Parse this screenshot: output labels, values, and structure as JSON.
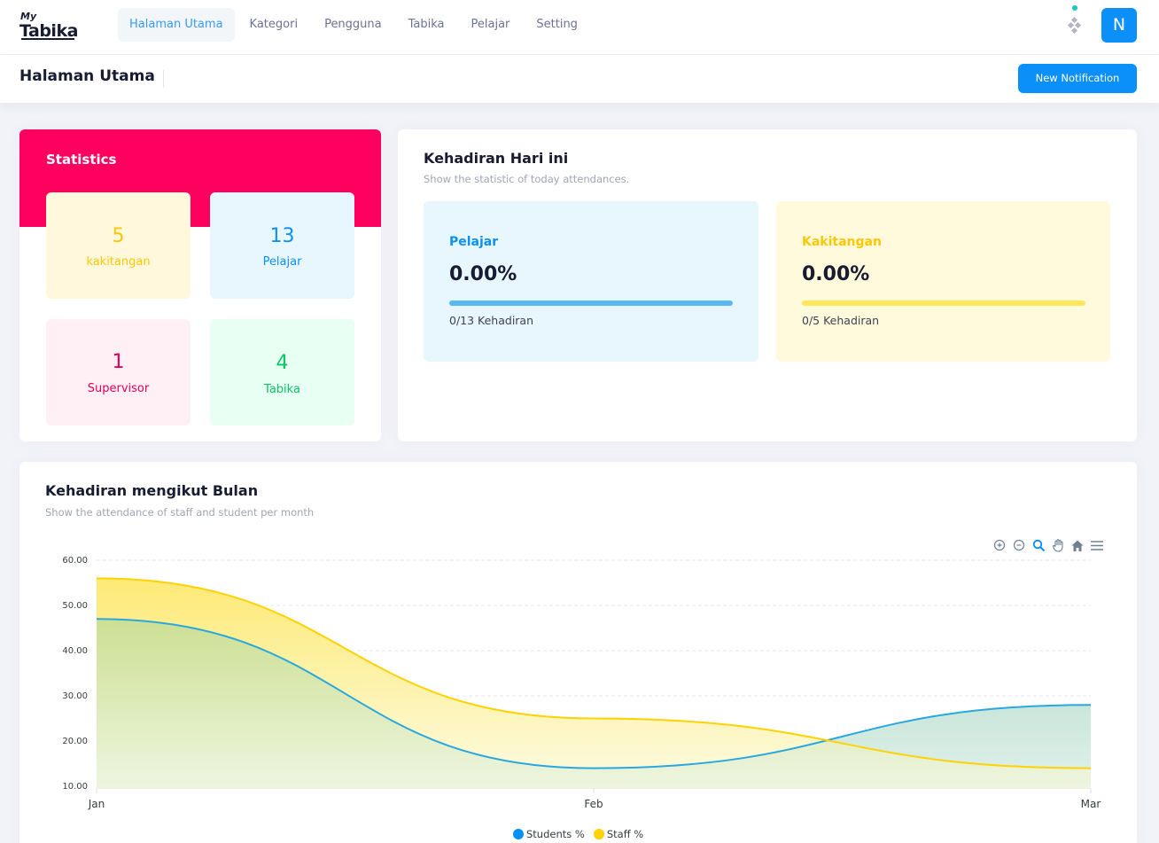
{
  "brand": {
    "logo_small": "My",
    "logo_main": "Tabika"
  },
  "nav": [
    {
      "label": "Halaman Utama",
      "active": true
    },
    {
      "label": "Kategori",
      "active": false
    },
    {
      "label": "Pengguna",
      "active": false
    },
    {
      "label": "Tabika",
      "active": false
    },
    {
      "label": "Pelajar",
      "active": false
    },
    {
      "label": "Setting",
      "active": false
    }
  ],
  "user": {
    "initial": "N"
  },
  "subheader": {
    "title": "Halaman Utama",
    "button": "New Notification"
  },
  "statistics": {
    "title": "Statistics",
    "tiles": [
      {
        "value": "5",
        "label": "kakitangan"
      },
      {
        "value": "13",
        "label": "Pelajar"
      },
      {
        "value": "1",
        "label": "Supervisor"
      },
      {
        "value": "4",
        "label": "Tabika"
      }
    ]
  },
  "attendance_today": {
    "title": "Kehadiran Hari ini",
    "subtitle": "Show the statistic of today attendances.",
    "boxes": [
      {
        "name": "Pelajar",
        "percent": "0.00%",
        "progress": 0,
        "count": "0/13 Kehadiran"
      },
      {
        "name": "Kakitangan",
        "percent": "0.00%",
        "progress": 0,
        "count": "0/5 Kehadiran"
      }
    ]
  },
  "monthly": {
    "title": "Kehadiran mengikut Bulan",
    "subtitle": "Show the attendance of staff and student per month",
    "toolbar_icons": [
      "zoom-in-icon",
      "zoom-out-icon",
      "zoom-select-icon",
      "pan-hand-icon",
      "home-reset-icon",
      "menu-icon"
    ]
  },
  "colors": {
    "primary": "#0b90f9",
    "statistics_header": "#ff005e",
    "students_line": "#29a8e0",
    "staff_line": "#ffd200"
  },
  "chart_data": {
    "type": "area",
    "categories": [
      "Jan",
      "Feb",
      "Mar"
    ],
    "series": [
      {
        "name": "Students %",
        "values": [
          47,
          14,
          28
        ]
      },
      {
        "name": "Staff %",
        "values": [
          56,
          25,
          14
        ]
      }
    ],
    "ylim": [
      10,
      60
    ],
    "yticks": [
      "10.00",
      "20.00",
      "30.00",
      "40.00",
      "50.00",
      "60.00"
    ],
    "grid": true,
    "legend": "bottom-center",
    "smooth": true
  }
}
